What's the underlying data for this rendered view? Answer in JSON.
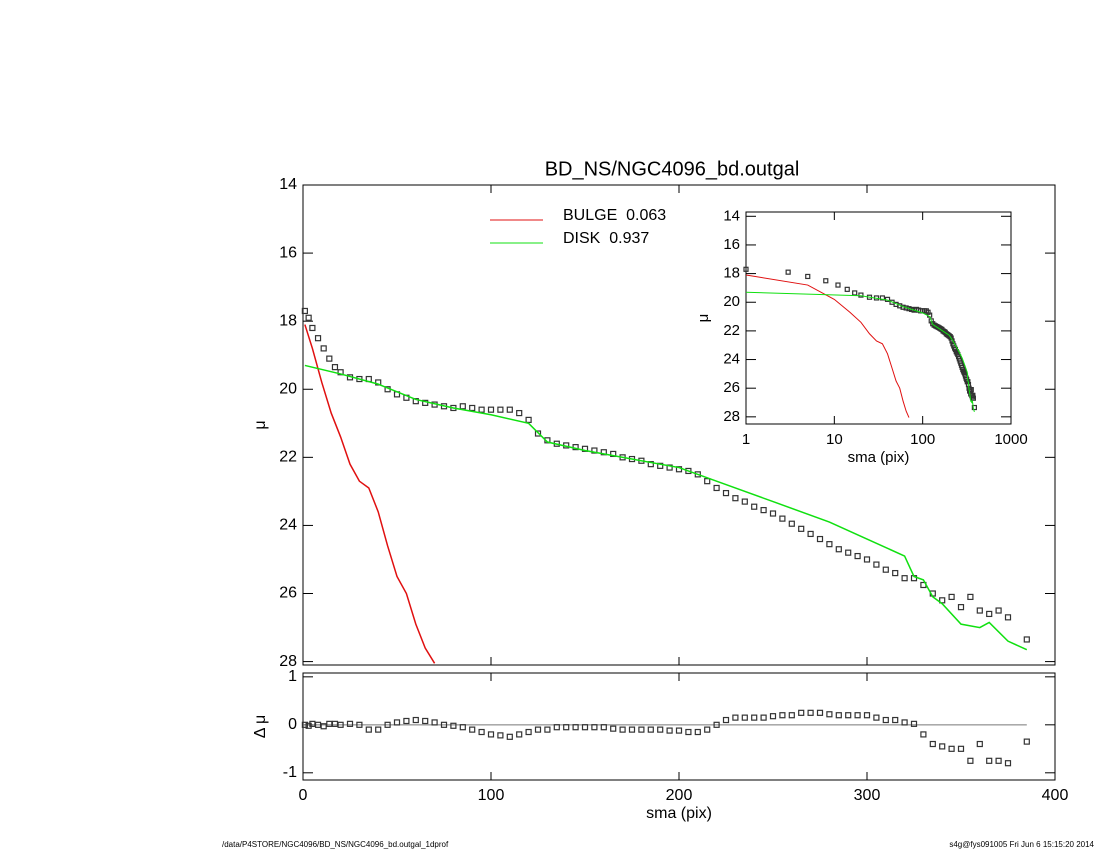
{
  "chart_data": [
    {
      "type": "line",
      "title": "BD_NS/NGC4096_bd.outgal",
      "ylabel": "μ",
      "xlim": [
        0,
        400
      ],
      "xticks": [
        0,
        100,
        200,
        300,
        400
      ],
      "xtick_labels": false,
      "ylim": [
        14,
        28.1
      ],
      "yticks": [
        14,
        16,
        18,
        20,
        22,
        24,
        26,
        28
      ],
      "y_inverted": true,
      "series": [
        {
          "marker": "square",
          "color": "#333333",
          "x": [
            1,
            3,
            5,
            8,
            11,
            14,
            17,
            20,
            25,
            30,
            35,
            40,
            45,
            50,
            55,
            60,
            65,
            70,
            75,
            80,
            85,
            90,
            95,
            100,
            105,
            110,
            115,
            120,
            125,
            130,
            135,
            140,
            145,
            150,
            155,
            160,
            165,
            170,
            175,
            180,
            185,
            190,
            195,
            200,
            205,
            210,
            215,
            220,
            225,
            230,
            235,
            240,
            245,
            250,
            255,
            260,
            265,
            270,
            275,
            280,
            285,
            290,
            295,
            300,
            305,
            310,
            315,
            320,
            325,
            330,
            335,
            340,
            345,
            350,
            355,
            360,
            365,
            370,
            375,
            385
          ],
          "values": [
            17.7,
            17.9,
            18.2,
            18.5,
            18.8,
            19.1,
            19.35,
            19.5,
            19.65,
            19.7,
            19.7,
            19.8,
            20.0,
            20.15,
            20.25,
            20.35,
            20.4,
            20.45,
            20.5,
            20.55,
            20.5,
            20.55,
            20.6,
            20.6,
            20.6,
            20.6,
            20.7,
            20.9,
            21.3,
            21.5,
            21.6,
            21.65,
            21.7,
            21.75,
            21.8,
            21.85,
            21.9,
            22.0,
            22.05,
            22.1,
            22.2,
            22.25,
            22.3,
            22.35,
            22.4,
            22.5,
            22.7,
            22.9,
            23.05,
            23.2,
            23.3,
            23.45,
            23.55,
            23.65,
            23.8,
            23.95,
            24.1,
            24.25,
            24.4,
            24.55,
            24.7,
            24.8,
            24.9,
            25.0,
            25.15,
            25.3,
            25.4,
            25.55,
            25.55,
            25.75,
            26.0,
            26.2,
            26.1,
            26.4,
            26.1,
            26.5,
            26.6,
            26.5,
            26.7,
            27.35
          ]
        },
        {
          "name": "BULGE  0.063",
          "color": "#e01010",
          "x": [
            1,
            5,
            10,
            15,
            20,
            25,
            30,
            35,
            40,
            45,
            50,
            55,
            60,
            65,
            70
          ],
          "values": [
            18.1,
            18.8,
            19.8,
            20.7,
            21.4,
            22.2,
            22.7,
            22.9,
            23.6,
            24.6,
            25.5,
            26.0,
            26.9,
            27.6,
            28.05
          ]
        },
        {
          "name": "DISK  0.937",
          "color": "#10e010",
          "x": [
            1,
            20,
            40,
            60,
            80,
            100,
            120,
            130,
            150,
            200,
            220,
            250,
            280,
            300,
            320,
            325,
            330,
            335,
            340,
            350,
            360,
            365,
            375,
            385
          ],
          "values": [
            19.3,
            19.55,
            19.85,
            20.3,
            20.55,
            20.75,
            21.0,
            21.55,
            21.8,
            22.3,
            22.7,
            23.3,
            23.9,
            24.4,
            24.9,
            25.5,
            25.6,
            26.1,
            26.3,
            26.9,
            27.0,
            26.85,
            27.4,
            27.65
          ]
        }
      ],
      "inset": {
        "xlabel": "sma (pix)",
        "ylabel": "μ",
        "xlog": true,
        "xlim": [
          1,
          1000
        ],
        "xticks": [
          1,
          10,
          100,
          1000
        ],
        "ylim": [
          13.7,
          28.5
        ],
        "yticks": [
          14,
          16,
          18,
          20,
          22,
          24,
          26,
          28
        ],
        "y_inverted": true
      }
    },
    {
      "type": "scatter",
      "xlabel": "sma (pix)",
      "ylabel": "Δ μ",
      "xlim": [
        0,
        400
      ],
      "xticks": [
        0,
        100,
        200,
        300,
        400
      ],
      "ylim": [
        -1.15,
        1.08
      ],
      "yticks": [
        -1,
        0,
        1
      ],
      "reference_line": 0,
      "series": [
        {
          "marker": "square",
          "color": "#333333",
          "x": [
            1,
            3,
            5,
            8,
            11,
            14,
            17,
            20,
            25,
            30,
            35,
            40,
            45,
            50,
            55,
            60,
            65,
            70,
            75,
            80,
            85,
            90,
            95,
            100,
            105,
            110,
            115,
            120,
            125,
            130,
            135,
            140,
            145,
            150,
            155,
            160,
            165,
            170,
            175,
            180,
            185,
            190,
            195,
            200,
            205,
            210,
            215,
            220,
            225,
            230,
            235,
            240,
            245,
            250,
            255,
            260,
            265,
            270,
            275,
            280,
            285,
            290,
            295,
            300,
            305,
            310,
            315,
            320,
            325,
            330,
            335,
            340,
            345,
            350,
            355,
            360,
            365,
            370,
            375,
            385
          ],
          "values": [
            0,
            -0.02,
            0.02,
            0,
            -0.03,
            0.02,
            0.02,
            0,
            0.02,
            0,
            -0.1,
            -0.1,
            0,
            0.05,
            0.08,
            0.1,
            0.08,
            0.05,
            0,
            -0.02,
            -0.05,
            -0.1,
            -0.15,
            -0.2,
            -0.22,
            -0.25,
            -0.2,
            -0.15,
            -0.1,
            -0.1,
            -0.05,
            -0.05,
            -0.05,
            -0.05,
            -0.05,
            -0.05,
            -0.08,
            -0.1,
            -0.1,
            -0.1,
            -0.1,
            -0.1,
            -0.12,
            -0.12,
            -0.15,
            -0.15,
            -0.1,
            0,
            0.1,
            0.15,
            0.15,
            0.15,
            0.15,
            0.18,
            0.2,
            0.2,
            0.25,
            0.25,
            0.25,
            0.22,
            0.2,
            0.2,
            0.2,
            0.2,
            0.15,
            0.1,
            0.1,
            0.05,
            0.02,
            -0.2,
            -0.4,
            -0.45,
            -0.5,
            -0.5,
            -0.75,
            -0.4,
            -0.75,
            -0.75,
            -0.8,
            -0.35
          ]
        }
      ]
    }
  ],
  "footer": {
    "left": "/data/P4STORE/NGC4096/BD_NS/NGC4096_bd.outgal_1dprof",
    "right": "s4g@fys091005  Fri Jun  6 15:15:20 2014"
  }
}
